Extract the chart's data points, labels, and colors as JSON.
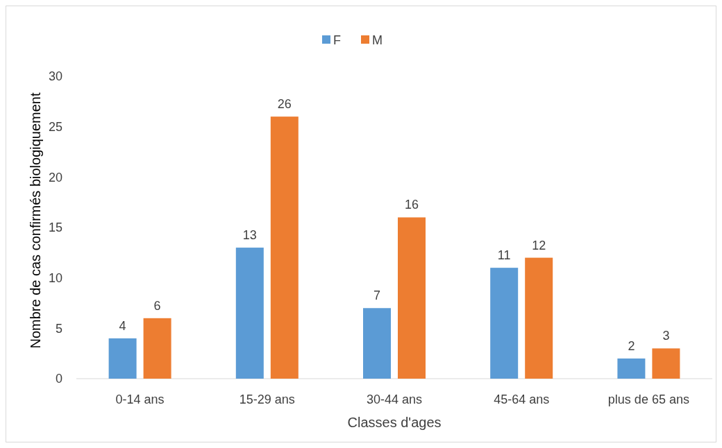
{
  "chart_data": {
    "type": "bar",
    "xlabel": "Classes d'ages",
    "ylabel": "Nombre de cas confirmés biologiquement",
    "categories": [
      "0-14 ans",
      "15-29 ans",
      "30-44 ans",
      "45-64 ans",
      "plus de 65 ans"
    ],
    "series": [
      {
        "name": "F",
        "color": "#5b9bd5",
        "values": [
          4,
          13,
          7,
          11,
          2
        ]
      },
      {
        "name": "M",
        "color": "#ed7d31",
        "values": [
          6,
          26,
          16,
          12,
          3
        ]
      }
    ],
    "ylim": [
      0,
      30
    ],
    "yticks": [
      0,
      5,
      10,
      15,
      20,
      25,
      30
    ],
    "grid": false,
    "legend": "top",
    "data_labels": true
  }
}
